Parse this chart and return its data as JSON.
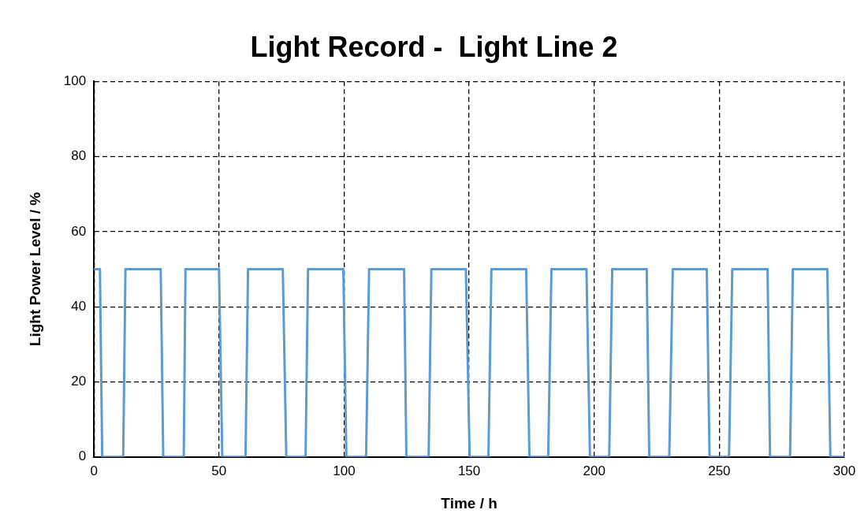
{
  "chart_data": {
    "type": "line",
    "title": "Light Record -  Light Line 2",
    "xlabel": "Time / h",
    "ylabel": "Light Power Level / %",
    "xlim": [
      0,
      300
    ],
    "xticks": [
      0,
      50,
      100,
      150,
      200,
      250,
      300
    ],
    "ylim": [
      0,
      100
    ],
    "yticks": [
      0,
      20,
      40,
      60,
      80,
      100
    ],
    "grid": true,
    "legend": false,
    "marker": "none",
    "line_style": "solid",
    "series": [
      {
        "color": "#5b9bd5",
        "x": [
          0,
          2.4,
          3.3,
          11.7,
          12.6,
          26.7,
          27.7,
          35.9,
          36.6,
          50,
          51.3,
          60.6,
          61.6,
          75.5,
          76.9,
          84.6,
          85.6,
          99.7,
          100.9,
          108.8,
          110,
          124,
          124.9,
          133.8,
          134.9,
          148.7,
          150.2,
          157.7,
          158.9,
          172.8,
          174.1,
          181.6,
          182.9,
          196.9,
          198.3,
          206,
          207.2,
          221,
          222,
          230,
          231.4,
          245,
          246.1,
          253.9,
          255.2,
          269.3,
          270.3,
          278.3,
          279.4,
          293.2,
          294.4,
          300
        ],
        "values": [
          50,
          50,
          0,
          0,
          50,
          50,
          0,
          0,
          50,
          50,
          0,
          0,
          50,
          50,
          0,
          0,
          50,
          50,
          0,
          0,
          50,
          50,
          0,
          0,
          50,
          50,
          0,
          0,
          50,
          50,
          0,
          0,
          50,
          50,
          0,
          0,
          50,
          50,
          0,
          0,
          50,
          50,
          0,
          0,
          50,
          50,
          0,
          0,
          50,
          50,
          0,
          0
        ]
      }
    ]
  }
}
